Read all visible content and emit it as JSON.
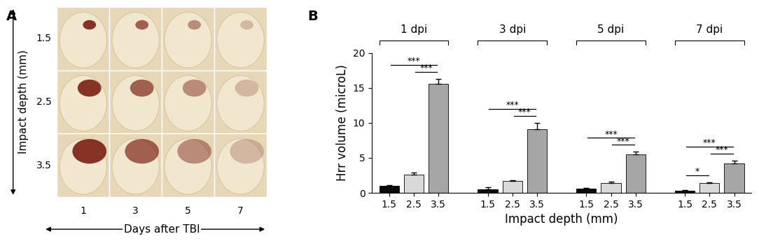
{
  "panel_a": {
    "label": "A",
    "y_label": "Impact depth (mm)",
    "rows": [
      "1.5",
      "2.5",
      "3.5"
    ],
    "columns": [
      "1",
      "3",
      "5",
      "7"
    ],
    "x_label": "Days after TBI"
  },
  "chart_data": {
    "type": "bar",
    "panel_label": "B",
    "groups": [
      "1 dpi",
      "3 dpi",
      "5 dpi",
      "7 dpi"
    ],
    "categories": [
      "1.5",
      "2.5",
      "3.5",
      "1.5",
      "2.5",
      "3.5",
      "1.5",
      "2.5",
      "3.5",
      "1.5",
      "2.5",
      "3.5"
    ],
    "values": [
      1.0,
      2.6,
      15.6,
      0.5,
      1.7,
      9.1,
      0.6,
      1.4,
      5.5,
      0.3,
      1.4,
      4.2
    ],
    "errors": [
      0.05,
      0.3,
      0.7,
      0.3,
      0.05,
      0.9,
      0.1,
      0.15,
      0.35,
      0.1,
      0.1,
      0.4
    ],
    "colors": [
      "#0a0a0a",
      "#d9d9d9",
      "#a6a6a6",
      "#0a0a0a",
      "#d9d9d9",
      "#a6a6a6",
      "#0a0a0a",
      "#d9d9d9",
      "#a6a6a6",
      "#0a0a0a",
      "#d9d9d9",
      "#a6a6a6"
    ],
    "x_label": "Impact depth (mm)",
    "y_label": "Hrr volume (microL)",
    "ylim": [
      0,
      20
    ],
    "yticks": [
      0,
      5,
      10,
      15,
      20
    ],
    "significance": [
      {
        "group": "1 dpi",
        "from": "2.5",
        "to": "3.5",
        "label": "***"
      },
      {
        "group": "1 dpi",
        "from": "1.5",
        "to": "3.5",
        "label": "***"
      },
      {
        "group": "3 dpi",
        "from": "2.5",
        "to": "3.5",
        "label": "***"
      },
      {
        "group": "3 dpi",
        "from": "1.5",
        "to": "3.5",
        "label": "***"
      },
      {
        "group": "5 dpi",
        "from": "2.5",
        "to": "3.5",
        "label": "***"
      },
      {
        "group": "5 dpi",
        "from": "1.5",
        "to": "3.5",
        "label": "***"
      },
      {
        "group": "7 dpi",
        "from": "1.5",
        "to": "2.5",
        "label": "*"
      },
      {
        "group": "7 dpi",
        "from": "2.5",
        "to": "3.5",
        "label": "***"
      },
      {
        "group": "7 dpi",
        "from": "1.5",
        "to": "3.5",
        "label": "***"
      }
    ]
  }
}
